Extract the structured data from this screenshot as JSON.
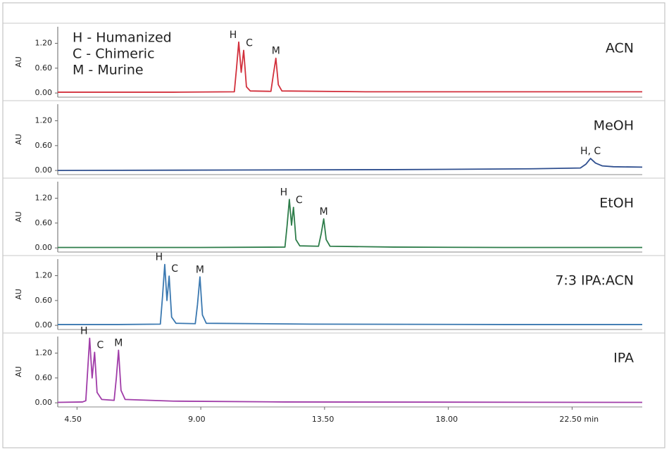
{
  "chart_data": [
    {
      "type": "line",
      "title": "ACN",
      "ylabel": "AU",
      "legend_notes": [
        "H - Humanized",
        "C - Chimeric",
        "M - Murine"
      ],
      "peak_labels": [
        "H",
        "C",
        "M"
      ],
      "series": [
        {
          "color": "#d2303c",
          "x": [
            3.8,
            8.0,
            10.22,
            10.3,
            10.38,
            10.47,
            10.56,
            10.66,
            10.8,
            11.55,
            11.64,
            11.73,
            11.82,
            11.95,
            15.0,
            20.0,
            25.05
          ],
          "values": [
            0.02,
            0.02,
            0.03,
            0.6,
            1.23,
            0.5,
            1.03,
            0.15,
            0.05,
            0.04,
            0.45,
            0.84,
            0.2,
            0.05,
            0.03,
            0.03,
            0.03
          ]
        }
      ],
      "xlim": [
        3.8,
        25.05
      ],
      "ylim": [
        -0.1,
        1.6
      ],
      "yticks": [
        {
          "value": 0,
          "label": "0.00"
        },
        {
          "value": 0.6,
          "label": "0.60"
        },
        {
          "value": 1.2,
          "label": "1.20"
        }
      ]
    },
    {
      "type": "line",
      "title": "MeOH",
      "ylabel": "AU",
      "peak_labels": [
        "H, C"
      ],
      "series": [
        {
          "color": "#2f4f8f",
          "x": [
            3.8,
            10.0,
            16.0,
            21.0,
            22.8,
            23.0,
            23.17,
            23.35,
            23.6,
            24.0,
            25.05
          ],
          "values": [
            0.0,
            0.01,
            0.02,
            0.04,
            0.06,
            0.15,
            0.29,
            0.18,
            0.11,
            0.09,
            0.08
          ]
        }
      ],
      "xlim": [
        3.8,
        25.05
      ],
      "ylim": [
        -0.1,
        1.6
      ],
      "yticks": [
        {
          "value": 0,
          "label": "0.00"
        },
        {
          "value": 0.6,
          "label": "0.60"
        },
        {
          "value": 1.2,
          "label": "1.20"
        }
      ]
    },
    {
      "type": "line",
      "title": "EtOH",
      "ylabel": "AU",
      "peak_labels": [
        "H",
        "C",
        "M"
      ],
      "series": [
        {
          "color": "#2e7d4a",
          "x": [
            3.8,
            9.0,
            12.06,
            12.14,
            12.22,
            12.3,
            12.37,
            12.46,
            12.6,
            13.28,
            13.38,
            13.47,
            13.56,
            13.7,
            16.0,
            20.0,
            25.05
          ],
          "values": [
            0.01,
            0.01,
            0.02,
            0.55,
            1.17,
            0.55,
            0.98,
            0.2,
            0.05,
            0.04,
            0.35,
            0.7,
            0.2,
            0.04,
            0.02,
            0.01,
            0.01
          ]
        }
      ],
      "xlim": [
        3.8,
        25.05
      ],
      "ylim": [
        -0.1,
        1.6
      ],
      "yticks": [
        {
          "value": 0,
          "label": "0.00"
        },
        {
          "value": 0.6,
          "label": "0.60"
        },
        {
          "value": 1.2,
          "label": "1.20"
        }
      ]
    },
    {
      "type": "line",
      "title": "7:3 IPA:ACN",
      "ylabel": "AU",
      "peak_labels": [
        "H",
        "C",
        "M"
      ],
      "series": [
        {
          "color": "#3a78b0",
          "x": [
            3.8,
            6.0,
            7.53,
            7.61,
            7.69,
            7.77,
            7.85,
            7.94,
            8.1,
            8.8,
            8.88,
            8.97,
            9.06,
            9.2,
            13.0,
            20.0,
            25.05
          ],
          "values": [
            0.02,
            0.02,
            0.03,
            0.7,
            1.47,
            0.6,
            1.19,
            0.2,
            0.05,
            0.04,
            0.5,
            1.17,
            0.25,
            0.05,
            0.03,
            0.02,
            0.02
          ]
        }
      ],
      "xlim": [
        3.8,
        25.05
      ],
      "ylim": [
        -0.1,
        1.6
      ],
      "yticks": [
        {
          "value": 0,
          "label": "0.00"
        },
        {
          "value": 0.6,
          "label": "0.60"
        },
        {
          "value": 1.2,
          "label": "1.20"
        }
      ]
    },
    {
      "type": "line",
      "title": "IPA",
      "ylabel": "AU",
      "peak_labels": [
        "H",
        "C",
        "M"
      ],
      "series": [
        {
          "color": "#a03ca8",
          "x": [
            3.8,
            4.7,
            4.82,
            4.89,
            4.96,
            5.05,
            5.14,
            5.23,
            5.4,
            5.85,
            5.93,
            6.01,
            6.1,
            6.25,
            8.0,
            12.0,
            25.05
          ],
          "values": [
            0.01,
            0.02,
            0.05,
            0.8,
            1.56,
            0.6,
            1.22,
            0.25,
            0.08,
            0.06,
            0.6,
            1.27,
            0.3,
            0.08,
            0.04,
            0.02,
            0.01
          ]
        }
      ],
      "xlim": [
        3.8,
        25.05
      ],
      "ylim": [
        -0.1,
        1.6
      ],
      "yticks": [
        {
          "value": 0,
          "label": "0.00"
        },
        {
          "value": 0.6,
          "label": "0.60"
        },
        {
          "value": 1.2,
          "label": "1.20"
        }
      ],
      "xticks": [
        {
          "value": 4.5,
          "label": "4.50"
        },
        {
          "value": 9,
          "label": "9.00"
        },
        {
          "value": 13.5,
          "label": "13.50"
        },
        {
          "value": 18,
          "label": "18.00"
        },
        {
          "value": 22.5,
          "label": "22.50 min"
        }
      ]
    }
  ]
}
